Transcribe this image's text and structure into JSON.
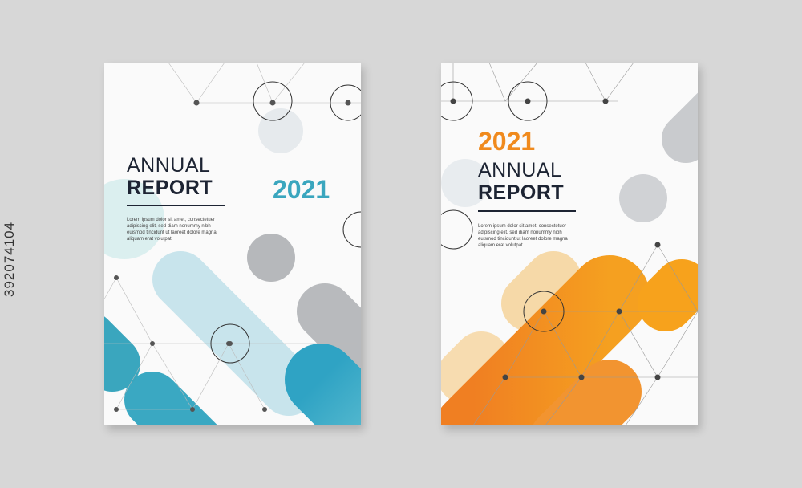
{
  "covers": [
    {
      "title_line1": "ANNUAL",
      "title_line2": "REPORT",
      "year": "2021",
      "year_color": "#3aa6be",
      "body": "Lorem ipsum dolor sit amet, consectetuer adipiscing elit, sed diam nonummy nibh euismod tincidunt ut laoreet dolore magna aliquam erat volutpat."
    },
    {
      "title_line1": "ANNUAL",
      "title_line2": "REPORT",
      "year": "2021",
      "year_color": "#f08a1d",
      "body": "Lorem ipsum dolor sit amet, consectetuer adipiscing elit, sed diam nonummy nibh euismod tincidunt ut laoreet dolore magna aliquam erat volutpat."
    }
  ],
  "watermark_id": "392074104"
}
